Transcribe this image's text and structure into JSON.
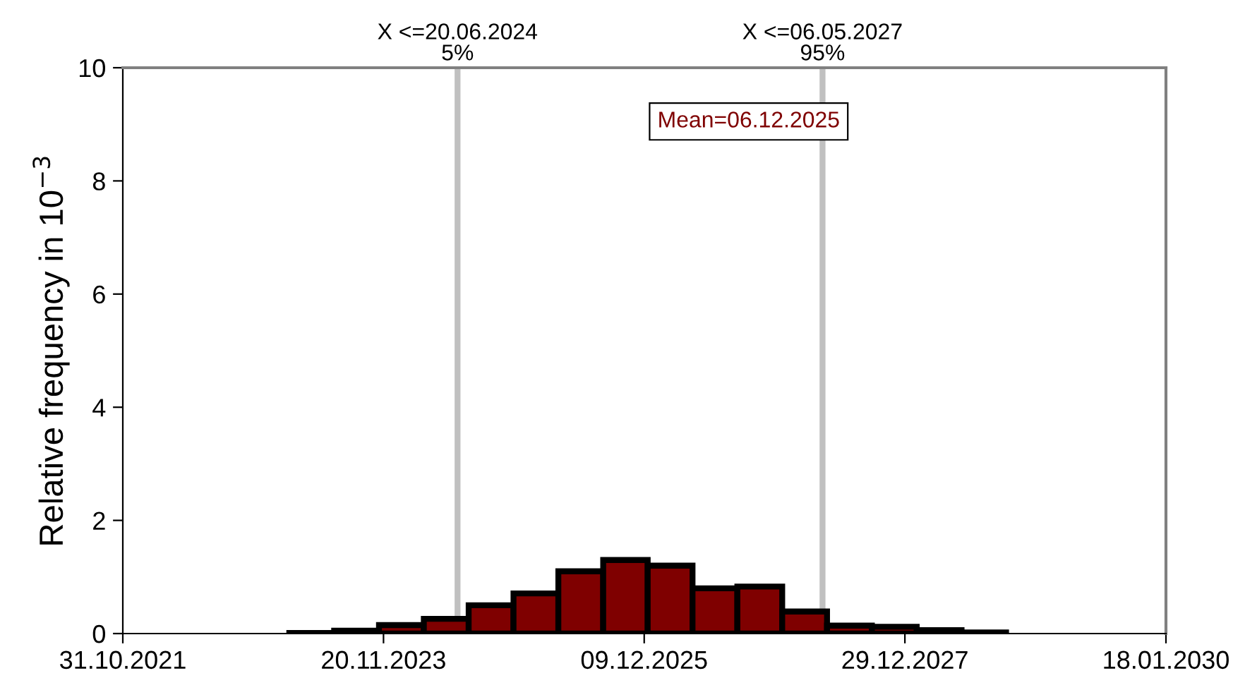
{
  "chart_data": {
    "type": "histogram",
    "ylabel": "Relative frequency in 10$^{−3}$",
    "bins": [
      "2023-02-22",
      "2023-07-01",
      "2023-11-07",
      "2024-03-15",
      "2024-07-22",
      "2024-11-28",
      "2025-04-06",
      "2025-08-13",
      "2025-12-19",
      "2026-04-27",
      "2026-09-03",
      "2027-01-10",
      "2027-05-19",
      "2027-09-25",
      "2028-02-01",
      "2028-06-09",
      "2028-10-15"
    ],
    "values": [
      0.01,
      0.05,
      0.15,
      0.26,
      0.5,
      0.71,
      1.1,
      1.3,
      1.2,
      0.8,
      0.83,
      0.39,
      0.14,
      0.12,
      0.06,
      0.02
    ],
    "color": "#7f0000",
    "xlim": [
      "2021-10-31",
      "2030-01-18"
    ],
    "xticks": [
      {
        "value": "2021-10-31",
        "label": "31.10.2021"
      },
      {
        "value": "2023-11-20",
        "label": "20.11.2023"
      },
      {
        "value": "2025-12-09",
        "label": "09.12.2025"
      },
      {
        "value": "2027-12-29",
        "label": "29.12.2027"
      },
      {
        "value": "2030-01-18",
        "label": "18.01.2030"
      }
    ],
    "ylim": [
      0,
      10
    ],
    "yticks": [
      0,
      2,
      4,
      6,
      8,
      10
    ],
    "grid": false,
    "ref_lines": [
      {
        "axis": "x",
        "value": "2024-06-20",
        "label": "X <=20.06.2024\n5%",
        "color": "#c0c0c0"
      },
      {
        "axis": "x",
        "value": "2027-05-06",
        "label": "X <=06.05.2027\n95%",
        "color": "#c0c0c0"
      }
    ],
    "annotations": [
      "Mean=06.12.2025"
    ]
  }
}
